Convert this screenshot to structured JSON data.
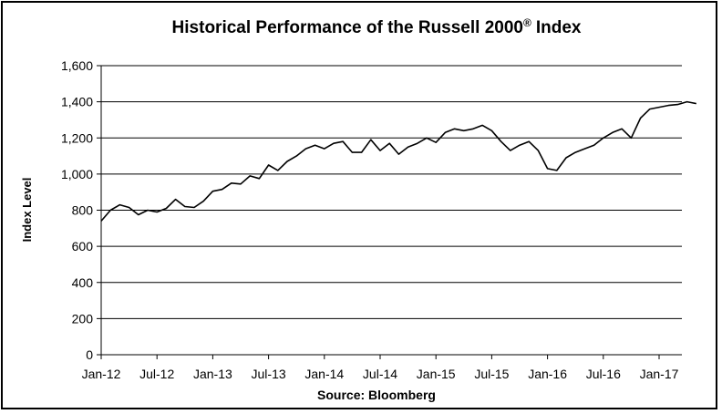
{
  "chart_data": {
    "type": "line",
    "title": "Historical Performance of the Russell 2000",
    "title_superscript": "®",
    "title_suffix": "Index",
    "ylabel": "Index Level",
    "xlabel": "Source: Bloomberg",
    "ylim": [
      0,
      1600
    ],
    "y_ticks": [
      "1,600",
      "1,400",
      "1,200",
      "1,000",
      "800",
      "600",
      "400",
      "200",
      "0"
    ],
    "y_tick_values": [
      1600,
      1400,
      1200,
      1000,
      800,
      600,
      400,
      200,
      0
    ],
    "x_ticks": [
      "Jan-12",
      "Jul-12",
      "Jan-13",
      "Jul-13",
      "Jan-14",
      "Jul-14",
      "Jan-15",
      "Jul-15",
      "Jan-16",
      "Jul-16",
      "Jan-17"
    ],
    "grid": true,
    "line_color": "#000000",
    "series": [
      {
        "x": [
          "2012-01",
          "2012-02",
          "2012-03",
          "2012-04",
          "2012-05",
          "2012-06",
          "2012-07",
          "2012-08",
          "2012-09",
          "2012-10",
          "2012-11",
          "2012-12",
          "2013-01",
          "2013-02",
          "2013-03",
          "2013-04",
          "2013-05",
          "2013-06",
          "2013-07",
          "2013-08",
          "2013-09",
          "2013-10",
          "2013-11",
          "2013-12",
          "2014-01",
          "2014-02",
          "2014-03",
          "2014-04",
          "2014-05",
          "2014-06",
          "2014-07",
          "2014-08",
          "2014-09",
          "2014-10",
          "2014-11",
          "2014-12",
          "2015-01",
          "2015-02",
          "2015-03",
          "2015-04",
          "2015-05",
          "2015-06",
          "2015-07",
          "2015-08",
          "2015-09",
          "2015-10",
          "2015-11",
          "2015-12",
          "2016-01",
          "2016-02",
          "2016-03",
          "2016-04",
          "2016-05",
          "2016-06",
          "2016-07",
          "2016-08",
          "2016-09",
          "2016-10",
          "2016-11",
          "2016-12",
          "2017-01",
          "2017-02",
          "2017-03",
          "2017-04",
          "2017-05"
        ],
        "values": [
          740,
          800,
          830,
          815,
          775,
          800,
          790,
          810,
          860,
          820,
          815,
          850,
          905,
          915,
          950,
          945,
          990,
          975,
          1050,
          1020,
          1070,
          1100,
          1140,
          1160,
          1140,
          1170,
          1180,
          1120,
          1120,
          1190,
          1130,
          1170,
          1110,
          1150,
          1170,
          1200,
          1175,
          1230,
          1250,
          1240,
          1250,
          1270,
          1240,
          1180,
          1130,
          1160,
          1180,
          1130,
          1030,
          1020,
          1090,
          1120,
          1140,
          1160,
          1200,
          1230,
          1250,
          1200,
          1310,
          1360,
          1370,
          1380,
          1385,
          1400,
          1390
        ]
      }
    ]
  }
}
